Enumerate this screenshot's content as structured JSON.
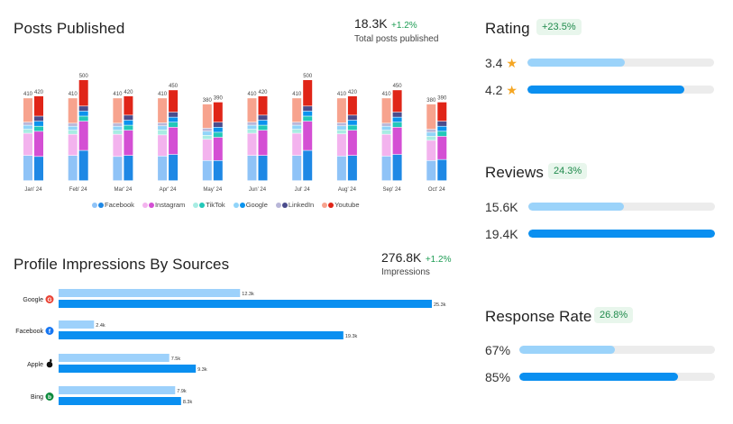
{
  "colors": {
    "facebook_light": "#8fc3f7",
    "facebook_dark": "#1e88e5",
    "instagram_light": "#f3b3ee",
    "instagram_dark": "#d44fd4",
    "tiktok_light": "#a8ece3",
    "tiktok_dark": "#22c8b8",
    "google_light": "#90d4f9",
    "google_dark": "#0a93ee",
    "linkedin_light": "#b8b6d8",
    "linkedin_dark": "#4a4c8c",
    "youtube_light": "#f7a38e",
    "youtube_dark": "#e02518",
    "impr_light": "#9dd1fb",
    "impr_dark": "#0a8ff0",
    "metric_light": "#9bd3fa",
    "metric_dark": "#0a8ff0",
    "track": "#ececec",
    "positive": "#1f9d55"
  },
  "posts": {
    "title": "Posts Published",
    "total": "18.3K",
    "change": "+1.2%",
    "caption": "Total posts published",
    "legend": [
      {
        "name": "Facebook",
        "light_key": "facebook_light",
        "dark_key": "facebook_dark"
      },
      {
        "name": "Instagram",
        "light_key": "instagram_light",
        "dark_key": "instagram_dark"
      },
      {
        "name": "TikTok",
        "light_key": "tiktok_light",
        "dark_key": "tiktok_dark"
      },
      {
        "name": "Google",
        "light_key": "google_light",
        "dark_key": "google_dark"
      },
      {
        "name": "LinkedIn",
        "light_key": "linkedin_light",
        "dark_key": "linkedin_dark"
      },
      {
        "name": "Youtube",
        "light_key": "youtube_light",
        "dark_key": "youtube_dark"
      }
    ]
  },
  "impressions": {
    "title": "Profile Impressions By Sources",
    "total": "276.8K",
    "change": "+1.2%",
    "caption": "Impressions"
  },
  "rating": {
    "title": "Rating",
    "badge": "+23.5%",
    "rows": [
      {
        "label": "3.4",
        "star": "★",
        "fraction": 0.52
      },
      {
        "label": "4.2",
        "star": "★",
        "fraction": 0.84
      }
    ]
  },
  "reviews": {
    "title": "Reviews",
    "badge": "24.3%",
    "rows": [
      {
        "label": "15.6K",
        "fraction": 0.51
      },
      {
        "label": "19.4K",
        "fraction": 1.0
      }
    ]
  },
  "response": {
    "title": "Response Rate",
    "badge": "26.8%",
    "rows": [
      {
        "label": "67%",
        "fraction": 0.49
      },
      {
        "label": "85%",
        "fraction": 0.81
      }
    ]
  },
  "chart_data": [
    {
      "type": "bar",
      "title": "Posts Published",
      "subtype": "grouped-stacked",
      "categories": [
        "Jan' 24",
        "Feb' 24",
        "Mar' 24",
        "Apr' 24",
        "May' 24",
        "Jun' 24",
        "Jul' 24",
        "Aug' 24",
        "Sep' 24",
        "Oct' 24"
      ],
      "stack_order": [
        "Facebook",
        "Instagram",
        "TikTok",
        "Google",
        "LinkedIn",
        "Youtube"
      ],
      "groups": [
        {
          "name": "previous",
          "shade": "light",
          "totals": [
            410,
            410,
            410,
            410,
            380,
            410,
            410,
            410,
            410,
            380
          ],
          "segments": {
            "Facebook": [
              125,
              125,
              120,
              122,
              100,
              125,
              125,
              122,
              122,
              100
            ],
            "Instagram": [
              110,
              105,
              110,
              105,
              105,
              110,
              110,
              110,
              108,
              100
            ],
            "TikTok": [
              20,
              20,
              20,
              25,
              20,
              20,
              20,
              20,
              20,
              20
            ],
            "Google": [
              20,
              20,
              20,
              20,
              20,
              20,
              20,
              20,
              20,
              20
            ],
            "LinkedIn": [
              15,
              15,
              15,
              15,
              15,
              15,
              15,
              15,
              15,
              15
            ],
            "Youtube": [
              120,
              125,
              125,
              123,
              120,
              120,
              120,
              123,
              125,
              125
            ]
          }
        },
        {
          "name": "current",
          "shade": "dark",
          "totals": [
            420,
            500,
            420,
            450,
            390,
            420,
            500,
            420,
            450,
            390
          ],
          "segments": {
            "Facebook": [
              120,
              150,
              125,
              130,
              100,
              125,
              150,
              125,
              130,
              105
            ],
            "Instagram": [
              125,
              145,
              125,
              135,
              115,
              125,
              145,
              125,
              135,
              115
            ],
            "TikTok": [
              25,
              25,
              25,
              25,
              25,
              25,
              25,
              25,
              25,
              25
            ],
            "Google": [
              25,
              25,
              25,
              25,
              25,
              25,
              25,
              25,
              25,
              25
            ],
            "LinkedIn": [
              25,
              25,
              25,
              25,
              25,
              25,
              25,
              25,
              25,
              25
            ],
            "Youtube": [
              100,
              130,
              95,
              110,
              100,
              95,
              130,
              95,
              110,
              95
            ]
          }
        }
      ],
      "ylim": [
        0,
        520
      ]
    },
    {
      "type": "bar",
      "orientation": "horizontal",
      "title": "Profile Impressions By Sources",
      "categories": [
        "Google",
        "Facebook",
        "Apple",
        "Bing"
      ],
      "icons": [
        "G",
        "f",
        "",
        "b"
      ],
      "icon_colors": [
        "#ea4335",
        "#1877f2",
        "#111111",
        "#0c8a3c"
      ],
      "series": [
        {
          "name": "previous",
          "values": [
            12.3,
            2.4,
            7.5,
            7.9
          ],
          "labels": [
            "12.3k",
            "2.4k",
            "7.5k",
            "7.9k"
          ]
        },
        {
          "name": "current",
          "values": [
            25.3,
            19.3,
            9.3,
            8.3
          ],
          "labels": [
            "25.3k",
            "19.3k",
            "9.3k",
            "8.3k"
          ]
        }
      ],
      "xlim": [
        0,
        25.3
      ]
    }
  ]
}
